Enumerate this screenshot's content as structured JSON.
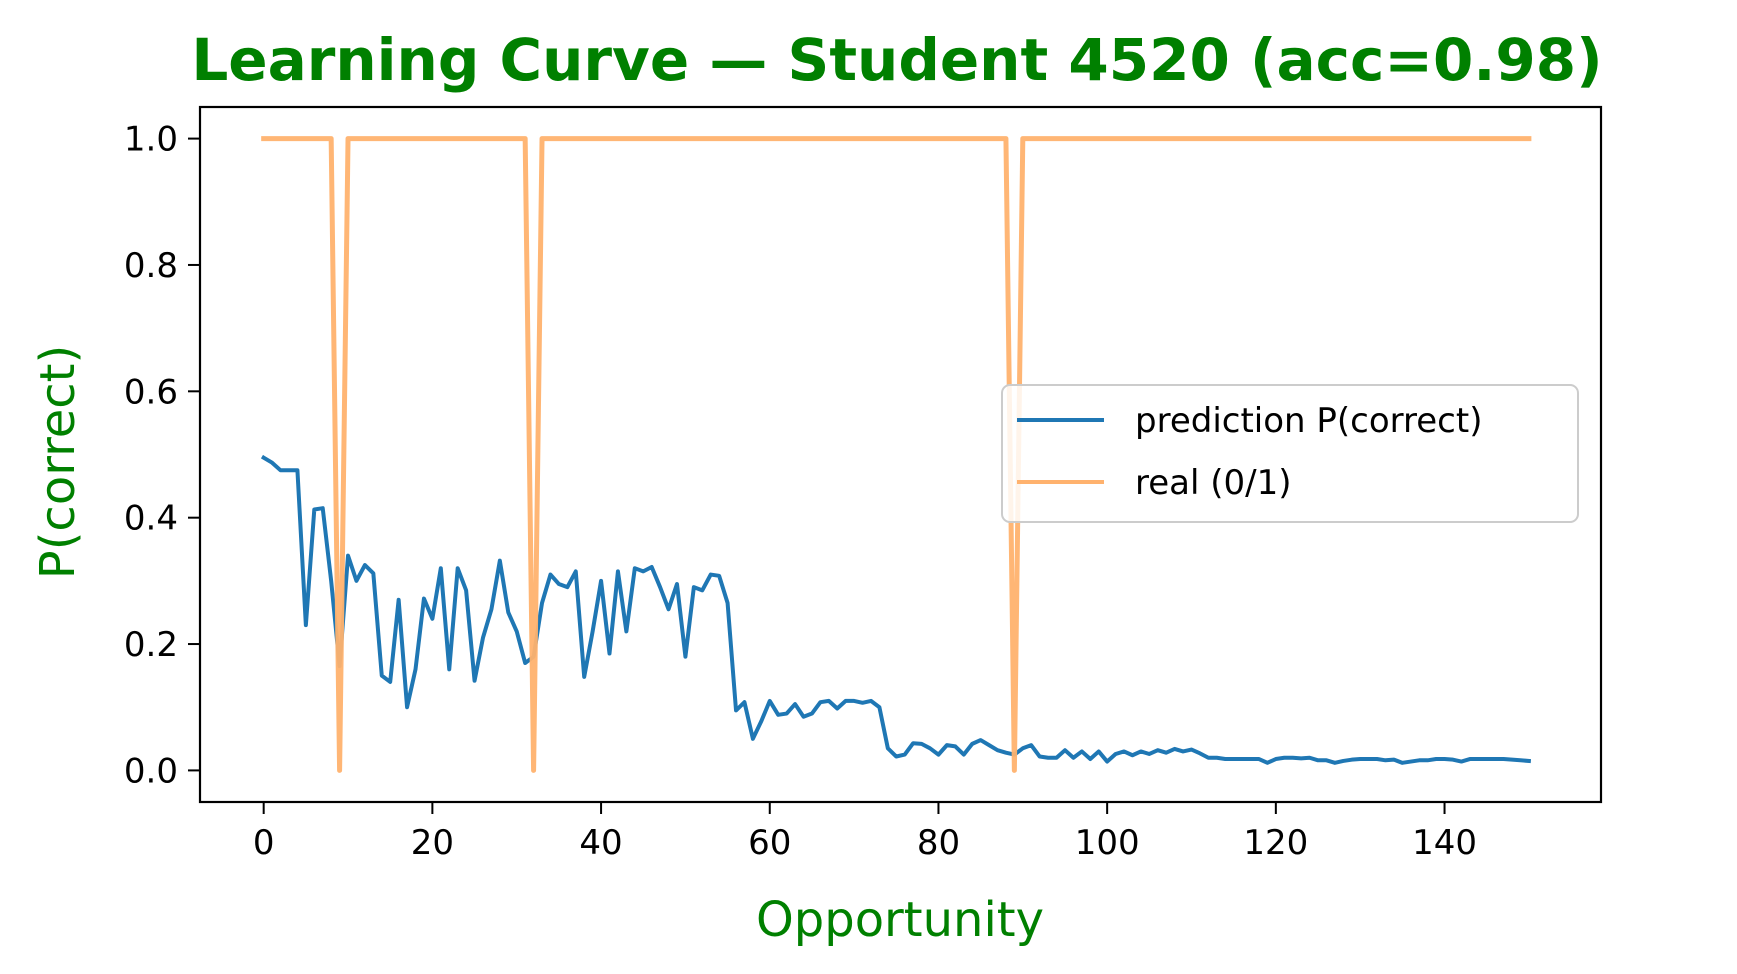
{
  "chart_data": {
    "type": "line",
    "title": "Learning Curve — Student 4520 (acc=0.98)",
    "xlabel": "Opportunity",
    "ylabel": "P(correct)",
    "xlim": [
      -7.55,
      158.55
    ],
    "ylim": [
      -0.05,
      1.05
    ],
    "xticks": [
      0,
      20,
      40,
      60,
      80,
      100,
      120,
      140
    ],
    "yticks": [
      0.0,
      0.2,
      0.4,
      0.6,
      0.8,
      1.0
    ],
    "xtick_labels": [
      "0",
      "20",
      "40",
      "60",
      "80",
      "100",
      "120",
      "140"
    ],
    "ytick_labels": [
      "0.0",
      "0.2",
      "0.4",
      "0.6",
      "0.8",
      "1.0"
    ],
    "grid": false,
    "legend_position": "center-right",
    "title_color": "#008000",
    "label_color": "#008000",
    "series": [
      {
        "name": "prediction P(correct)",
        "color": "#1f77b4",
        "y": [
          0.495,
          0.487,
          0.475,
          0.475,
          0.475,
          0.23,
          0.413,
          0.415,
          0.3,
          0.165,
          0.34,
          0.3,
          0.325,
          0.312,
          0.15,
          0.14,
          0.27,
          0.1,
          0.16,
          0.272,
          0.24,
          0.32,
          0.16,
          0.32,
          0.285,
          0.142,
          0.21,
          0.255,
          0.332,
          0.25,
          0.22,
          0.17,
          0.18,
          0.265,
          0.31,
          0.295,
          0.29,
          0.315,
          0.148,
          0.22,
          0.3,
          0.185,
          0.315,
          0.22,
          0.32,
          0.315,
          0.322,
          0.29,
          0.255,
          0.295,
          0.18,
          0.29,
          0.285,
          0.31,
          0.308,
          0.265,
          0.095,
          0.108,
          0.05,
          0.078,
          0.11,
          0.088,
          0.09,
          0.105,
          0.085,
          0.09,
          0.108,
          0.11,
          0.098,
          0.11,
          0.11,
          0.107,
          0.11,
          0.1,
          0.035,
          0.022,
          0.025,
          0.043,
          0.042,
          0.035,
          0.025,
          0.04,
          0.038,
          0.025,
          0.042,
          0.048,
          0.04,
          0.032,
          0.028,
          0.025,
          0.035,
          0.04,
          0.022,
          0.02,
          0.02,
          0.032,
          0.02,
          0.03,
          0.018,
          0.03,
          0.014,
          0.026,
          0.03,
          0.024,
          0.03,
          0.026,
          0.032,
          0.028,
          0.034,
          0.03,
          0.033,
          0.027,
          0.02,
          0.02,
          0.018,
          0.018,
          0.018,
          0.018,
          0.018,
          0.012,
          0.018,
          0.02,
          0.02,
          0.019,
          0.02,
          0.016,
          0.016,
          0.012,
          0.015,
          0.017,
          0.018,
          0.018,
          0.018,
          0.016,
          0.017,
          0.012,
          0.014,
          0.016,
          0.016,
          0.018,
          0.018,
          0.017,
          0.014,
          0.018,
          0.018,
          0.018,
          0.018,
          0.018,
          0.017,
          0.016,
          0.015
        ]
      },
      {
        "name": "real (0/1)",
        "color": "#ffb26e",
        "y": [
          1,
          1,
          1,
          1,
          1,
          1,
          1,
          1,
          1,
          0,
          1,
          1,
          1,
          1,
          1,
          1,
          1,
          1,
          1,
          1,
          1,
          1,
          1,
          1,
          1,
          1,
          1,
          1,
          1,
          1,
          1,
          1,
          0,
          1,
          1,
          1,
          1,
          1,
          1,
          1,
          1,
          1,
          1,
          1,
          1,
          1,
          1,
          1,
          1,
          1,
          1,
          1,
          1,
          1,
          1,
          1,
          1,
          1,
          1,
          1,
          1,
          1,
          1,
          1,
          1,
          1,
          1,
          1,
          1,
          1,
          1,
          1,
          1,
          1,
          1,
          1,
          1,
          1,
          1,
          1,
          1,
          1,
          1,
          1,
          1,
          1,
          1,
          1,
          1,
          0,
          1,
          1,
          1,
          1,
          1,
          1,
          1,
          1,
          1,
          1,
          1,
          1,
          1,
          1,
          1,
          1,
          1,
          1,
          1,
          1,
          1,
          1,
          1,
          1,
          1,
          1,
          1,
          1,
          1,
          1,
          1,
          1,
          1,
          1,
          1,
          1,
          1,
          1,
          1,
          1,
          1,
          1,
          1,
          1,
          1,
          1,
          1,
          1,
          1,
          1,
          1,
          1,
          1,
          1,
          1,
          1,
          1,
          1,
          1,
          1,
          1
        ]
      }
    ]
  }
}
